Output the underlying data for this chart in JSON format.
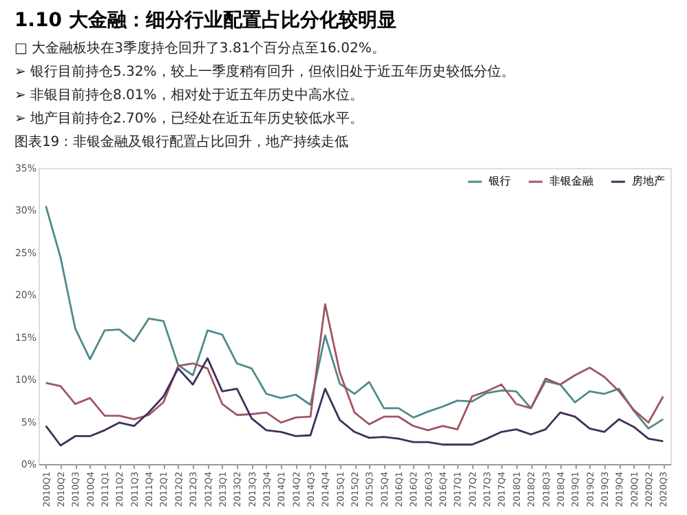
{
  "chart_data": {
    "type": "line",
    "title": "1.10 大金融：细分行业配置占比分化较明显",
    "subtitle": "图表19：非银金融及银行配置占比回升，地产持续走低",
    "annotations": [
      "□ 大金融板块在3季度持仓回升了3.81个百分点至16.02%。",
      "➢ 银行目前持仓5.32%，较上一季度稍有回升，但依旧处于近五年历史较低分位。",
      "➢ 非银目前持仓8.01%，相对处于近五年历史中高水位。",
      "➢ 地产目前持仓2.70%，已经处在近五年历史较低水平。"
    ],
    "categories": [
      "2010Q1",
      "2010Q2",
      "2010Q3",
      "2010Q4",
      "2011Q1",
      "2011Q2",
      "2011Q3",
      "2011Q4",
      "2012Q1",
      "2012Q2",
      "2012Q3",
      "2012Q4",
      "2013Q1",
      "2013Q2",
      "2013Q3",
      "2013Q4",
      "2014Q1",
      "2014Q2",
      "2014Q3",
      "2014Q4",
      "2015Q1",
      "2015Q2",
      "2015Q3",
      "2015Q4",
      "2016Q1",
      "2016Q2",
      "2016Q3",
      "2016Q4",
      "2017Q1",
      "2017Q2",
      "2017Q3",
      "2017Q4",
      "2018Q1",
      "2018Q2",
      "2018Q3",
      "2018Q4",
      "2019Q1",
      "2019Q2",
      "2019Q3",
      "2019Q4",
      "2020Q1",
      "2020Q2",
      "2020Q3"
    ],
    "series": [
      {
        "name": "银行",
        "color": "#4f8a8b",
        "values": [
          30.5,
          24.4,
          16,
          12.4,
          15.8,
          15.9,
          14.5,
          17.2,
          16.9,
          11.7,
          10.5,
          15.8,
          15.3,
          11.9,
          11.3,
          8.3,
          7.8,
          8.2,
          7,
          15.2,
          9.5,
          8.3,
          9.7,
          6.6,
          6.6,
          5.5,
          6.2,
          6.8,
          7.5,
          7.4,
          8.4,
          8.7,
          8.6,
          6.6,
          9.8,
          9.4,
          7.3,
          8.6,
          8.3,
          8.9,
          6.3,
          4.2,
          5.3
        ]
      },
      {
        "name": "非银金融",
        "color": "#a05560",
        "values": [
          9.6,
          9.2,
          7.1,
          7.8,
          5.7,
          5.7,
          5.3,
          5.8,
          7.3,
          11.6,
          11.9,
          11.3,
          7.1,
          5.8,
          5.9,
          6.1,
          4.9,
          5.5,
          5.6,
          18.9,
          10.8,
          6.1,
          4.7,
          5.6,
          5.6,
          4.5,
          4.0,
          4.5,
          4.1,
          8.0,
          8.6,
          9.4,
          7.1,
          6.6,
          10.1,
          9.4,
          10.5,
          11.4,
          10.3,
          8.6,
          6.4,
          4.9,
          8.0
        ]
      },
      {
        "name": "房地产",
        "color": "#40305a",
        "values": [
          4.5,
          2.2,
          3.3,
          3.3,
          4.0,
          4.9,
          4.5,
          6.1,
          8.0,
          11.3,
          9.4,
          12.5,
          8.6,
          8.9,
          5.4,
          4.0,
          3.8,
          3.3,
          3.4,
          8.9,
          5.2,
          3.8,
          3.1,
          3.2,
          3.0,
          2.6,
          2.6,
          2.3,
          2.3,
          2.3,
          3.0,
          3.8,
          4.1,
          3.5,
          4.1,
          6.1,
          5.6,
          4.2,
          3.8,
          5.3,
          4.4,
          3.0,
          2.7
        ]
      }
    ],
    "ylim": [
      0,
      35
    ],
    "yticks": [
      {
        "value": 0,
        "label": "0%"
      },
      {
        "value": 5,
        "label": "5%"
      },
      {
        "value": 10,
        "label": "10%"
      },
      {
        "value": 15,
        "label": "15%"
      },
      {
        "value": 20,
        "label": "20%"
      },
      {
        "value": 25,
        "label": "25%"
      },
      {
        "value": 30,
        "label": "30%"
      },
      {
        "value": 35,
        "label": "35%"
      }
    ],
    "grid": false,
    "legend": "top right",
    "marker": "none",
    "line_style": "solid"
  }
}
